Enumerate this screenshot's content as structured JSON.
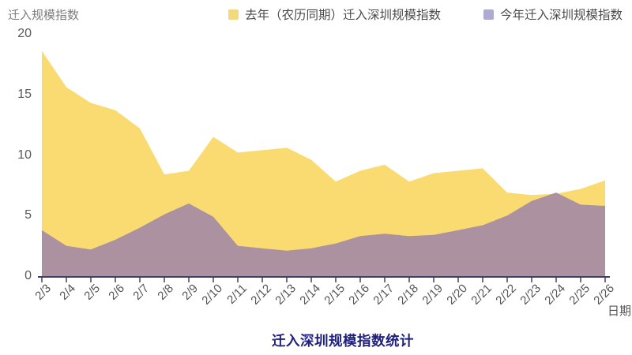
{
  "colors": {
    "axis": "#403d63",
    "tick_label": "#5a5a5a",
    "y_axis_title": "#7d7d7d",
    "legend_text": "#4c4c4c",
    "title_text": "#20207e",
    "background": "#ffffff"
  },
  "chart_data": {
    "type": "area",
    "title": "迁入深圳规模指数统计",
    "xlabel": "日期",
    "ylabel": "迁入规模指数",
    "ylim": [
      0,
      20
    ],
    "yticks": [
      0,
      5,
      10,
      15,
      20
    ],
    "grid": false,
    "legend_position": "top",
    "stacked": false,
    "categories": [
      "2/3",
      "2/4",
      "2/5",
      "2/6",
      "2/7",
      "2/8",
      "2/9",
      "2/10",
      "2/11",
      "2/12",
      "2/13",
      "2/14",
      "2/15",
      "2/16",
      "2/17",
      "2/18",
      "2/19",
      "2/20",
      "2/21",
      "2/22",
      "2/23",
      "2/24",
      "2/25",
      "2/26"
    ],
    "series": [
      {
        "name": "去年（农历同期）迁入深圳规模指数",
        "color": "#fadb71",
        "legend_swatch": "#f2d97e",
        "values": [
          18.6,
          15.6,
          14.3,
          13.7,
          12.2,
          8.4,
          8.7,
          11.5,
          10.2,
          10.4,
          10.6,
          9.6,
          7.8,
          8.7,
          9.2,
          7.8,
          8.5,
          8.7,
          8.9,
          6.9,
          6.7,
          6.8,
          7.2,
          7.9
        ]
      },
      {
        "name": "今年迁入深圳规模指数",
        "color": "#ac92a0",
        "legend_swatch": "#aeabd3",
        "values": [
          3.8,
          2.5,
          2.2,
          3.0,
          4.0,
          5.1,
          6.0,
          4.9,
          2.5,
          2.3,
          2.1,
          2.3,
          2.7,
          3.3,
          3.5,
          3.3,
          3.4,
          3.8,
          4.2,
          5.0,
          6.2,
          6.9,
          5.9,
          5.8
        ]
      }
    ]
  }
}
